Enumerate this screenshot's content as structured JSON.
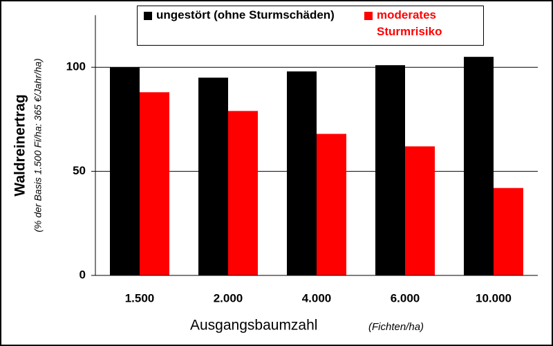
{
  "chart_data": {
    "type": "bar",
    "y_label": "Waldreinertrag",
    "y_sublabel": "(% der Basis 1.500 Fi/ha: 365 €/Jahr/ha)",
    "x_label": "Ausgangsbaumzahl",
    "x_sublabel": "(Fichten/ha)",
    "categories": [
      "1.500",
      "2.000",
      "4.000",
      "6.000",
      "10.000"
    ],
    "series": [
      {
        "name": "ungestört (ohne Sturmschäden)",
        "color": "#000000",
        "values": [
          100,
          95,
          98,
          101,
          105
        ]
      },
      {
        "name": "moderates Sturmrisiko",
        "color": "#ff0000",
        "values": [
          88,
          79,
          68,
          62,
          42
        ]
      }
    ],
    "ylim": [
      0,
      125
    ],
    "yticks": [
      0,
      50,
      100
    ],
    "grid": true,
    "legend": "top"
  }
}
